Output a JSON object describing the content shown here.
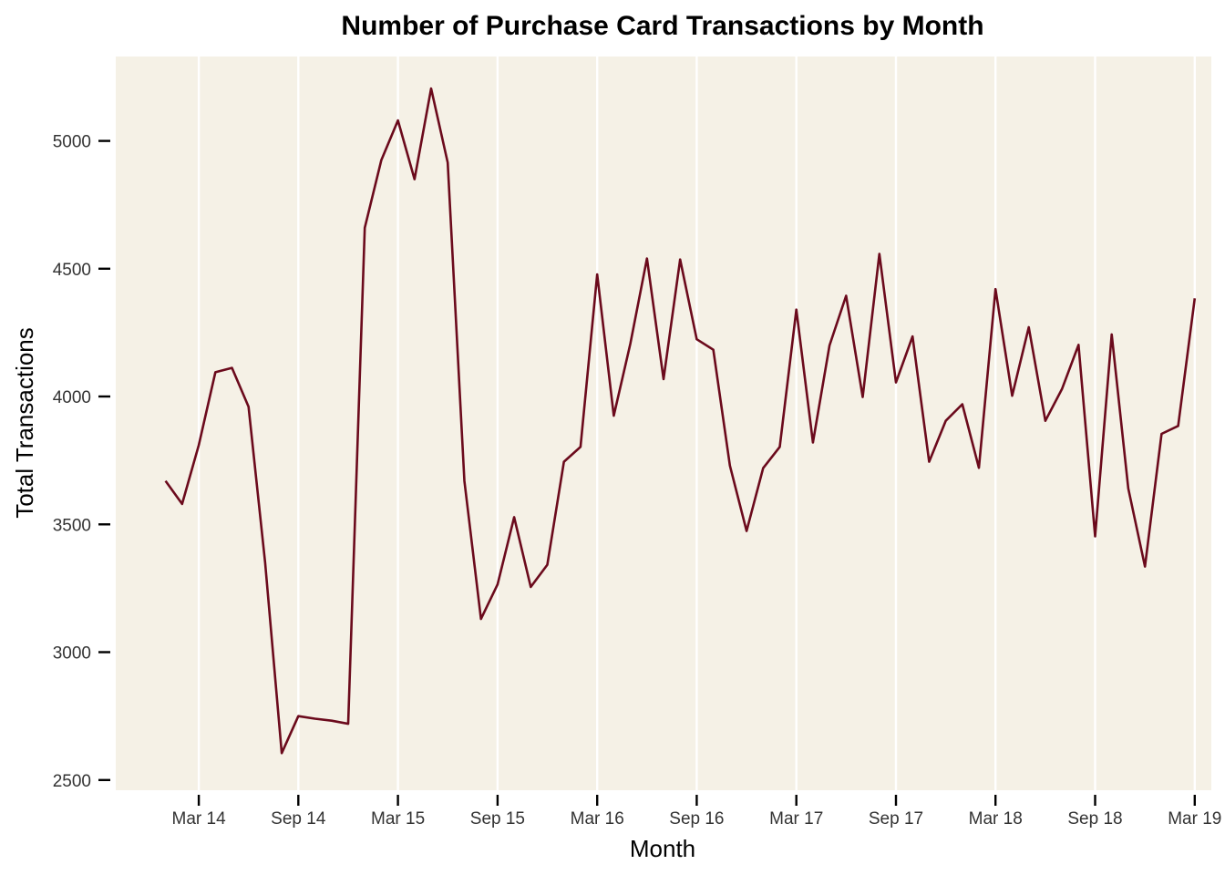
{
  "chart_data": {
    "type": "line",
    "title": "Number of Purchase Card Transactions by Month",
    "xlabel": "Month",
    "ylabel": "Total Transactions",
    "x_ticks": [
      "Mar 14",
      "Sep 14",
      "Mar 15",
      "Sep 15",
      "Mar 16",
      "Sep 16",
      "Mar 17",
      "Sep 17",
      "Mar 18",
      "Sep 18",
      "Mar 19"
    ],
    "x_tick_months": [
      "2014-03",
      "2014-09",
      "2015-03",
      "2015-09",
      "2016-03",
      "2016-09",
      "2017-03",
      "2017-09",
      "2018-03",
      "2018-09",
      "2019-03"
    ],
    "x_range": [
      "2013-10",
      "2019-04"
    ],
    "y_ticks": [
      2500,
      3000,
      3500,
      4000,
      4500,
      5000
    ],
    "ylim": [
      2460,
      5330
    ],
    "grid": "vertical",
    "colors": {
      "panel_background": "#f5f1e6",
      "grid": "#ffffff",
      "line": "#6b0a1c"
    },
    "series": [
      {
        "x": [
          "2014-01",
          "2014-02",
          "2014-03",
          "2014-04",
          "2014-05",
          "2014-06",
          "2014-07",
          "2014-08",
          "2014-09",
          "2014-10",
          "2014-11",
          "2014-12",
          "2015-01",
          "2015-02",
          "2015-03",
          "2015-04",
          "2015-05",
          "2015-06",
          "2015-07",
          "2015-08",
          "2015-09",
          "2015-10",
          "2015-11",
          "2015-12",
          "2016-01",
          "2016-02",
          "2016-03",
          "2016-04",
          "2016-05",
          "2016-06",
          "2016-07",
          "2016-08",
          "2016-09",
          "2016-10",
          "2016-11",
          "2016-12",
          "2017-01",
          "2017-02",
          "2017-03",
          "2017-04",
          "2017-05",
          "2017-06",
          "2017-07",
          "2017-08",
          "2017-09",
          "2017-10",
          "2017-11",
          "2017-12",
          "2018-01",
          "2018-02",
          "2018-03",
          "2018-04",
          "2018-05",
          "2018-06",
          "2018-07",
          "2018-08",
          "2018-09",
          "2018-10",
          "2018-11",
          "2018-12",
          "2019-01",
          "2019-02",
          "2019-03"
        ],
        "values": [
          3670,
          3580,
          3810,
          4095,
          4112,
          3960,
          3350,
          2605,
          2750,
          2740,
          2732,
          2720,
          4660,
          4925,
          5080,
          4850,
          5205,
          4915,
          3670,
          3130,
          3265,
          3528,
          3255,
          3342,
          3745,
          3803,
          4478,
          3925,
          4207,
          4540,
          4068,
          4536,
          4224,
          4183,
          3730,
          3474,
          3720,
          3803,
          4340,
          3820,
          4200,
          4394,
          3998,
          4558,
          4055,
          4235,
          3745,
          3905,
          3970,
          3721,
          4420,
          4003,
          4271,
          3905,
          4029,
          4202,
          3453,
          4243,
          3640,
          3335,
          3854,
          3885,
          4384
        ]
      }
    ]
  }
}
